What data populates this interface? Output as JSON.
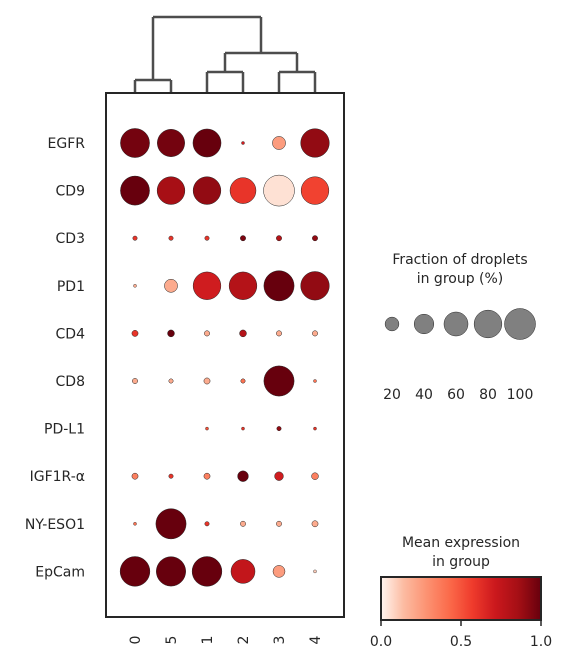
{
  "chart_data": {
    "type": "dotplot",
    "genes": [
      "EGFR",
      "CD9",
      "CD3",
      "PD1",
      "CD4",
      "CD8",
      "PD-L1",
      "IGF1R-α",
      "NY-ESO1",
      "EpCam"
    ],
    "groups": [
      "0",
      "5",
      "1",
      "2",
      "3",
      "4"
    ],
    "fraction_percent": [
      [
        88,
        78,
        82,
        1,
        18,
        85
      ],
      [
        88,
        80,
        80,
        70,
        100,
        80
      ],
      [
        2,
        2,
        2,
        3,
        3,
        3
      ],
      [
        1,
        18,
        80,
        80,
        95,
        85
      ],
      [
        4,
        5,
        3,
        5,
        3,
        3
      ],
      [
        3,
        2,
        4,
        2,
        95,
        1
      ],
      [
        0,
        0,
        1,
        1,
        2,
        1
      ],
      [
        4,
        2,
        4,
        12,
        8,
        5
      ],
      [
        1,
        95,
        2,
        3,
        3,
        4
      ],
      [
        92,
        90,
        92,
        60,
        15,
        1
      ]
    ],
    "mean_expression": [
      [
        0.97,
        0.97,
        1.0,
        0.7,
        0.25,
        0.9
      ],
      [
        1.0,
        0.85,
        0.9,
        0.6,
        0.05,
        0.55
      ],
      [
        0.6,
        0.6,
        0.6,
        0.95,
        0.8,
        0.9
      ],
      [
        0.2,
        0.2,
        0.7,
        0.8,
        1.0,
        0.9
      ],
      [
        0.6,
        1.0,
        0.2,
        0.8,
        0.2,
        0.2
      ],
      [
        0.2,
        0.2,
        0.2,
        0.4,
        1.0,
        0.4
      ],
      [
        0.5,
        0.5,
        0.5,
        0.6,
        0.9,
        0.6
      ],
      [
        0.35,
        0.6,
        0.35,
        1.0,
        0.7,
        0.35
      ],
      [
        0.4,
        1.0,
        0.6,
        0.2,
        0.2,
        0.2
      ],
      [
        1.0,
        1.0,
        1.0,
        0.75,
        0.25,
        0.1
      ]
    ],
    "dendrogram_order": [
      "0",
      "5",
      "1",
      "2",
      "3",
      "4"
    ],
    "size_legend": {
      "title_line1": "Fraction of droplets",
      "title_line2": "in group (%)",
      "values": [
        20,
        40,
        60,
        80,
        100
      ],
      "labels": [
        "20",
        "40",
        "60",
        "80",
        "100"
      ]
    },
    "color_legend": {
      "title_line1": "Mean expression",
      "title_line2": "in group",
      "range": [
        0,
        1
      ],
      "ticks": [
        "0.0",
        "0.5",
        "1.0"
      ],
      "colormap": "Reds",
      "colors": [
        "#fff5f0",
        "#fcbba1",
        "#fc9272",
        "#fb6a4a",
        "#ef3b2c",
        "#cb181d",
        "#a50f15",
        "#67000d"
      ]
    },
    "dot_edge_color": "#262626",
    "dendrogram_color": "#4d4d4d",
    "frame_color": "#262626"
  }
}
